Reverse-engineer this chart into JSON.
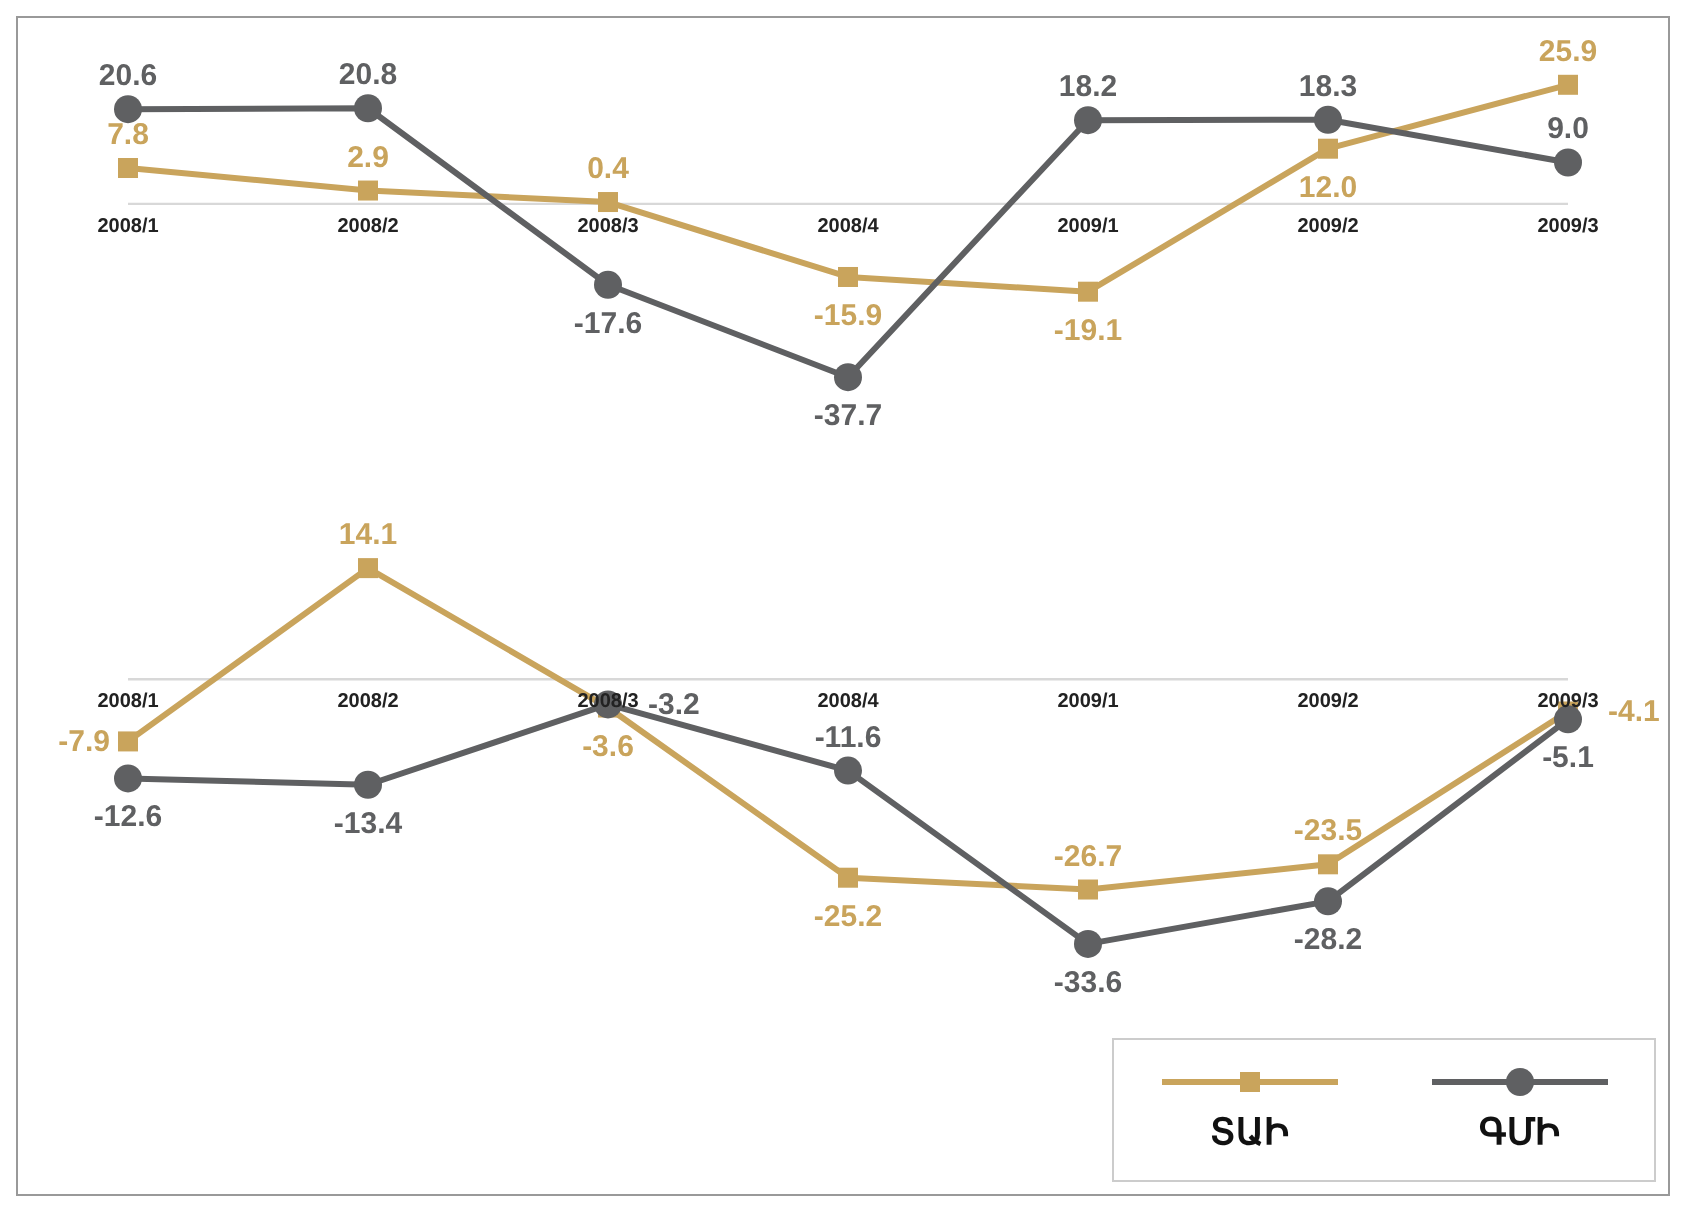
{
  "chart_data": [
    {
      "type": "line",
      "categories": [
        "2008/1",
        "2008/2",
        "2008/3",
        "2008/4",
        "2009/1",
        "2009/2",
        "2009/3"
      ],
      "series": [
        {
          "color": "#c9a45c",
          "marker": "square",
          "values": [
            7.8,
            2.9,
            0.4,
            -15.9,
            -19.1,
            12.0,
            25.9
          ],
          "value_labels": [
            "7.8",
            "2.9",
            "0.4",
            "-15.9",
            "-19.1",
            "12.0",
            "25.9"
          ]
        },
        {
          "color": "#5f6062",
          "marker": "circle",
          "values": [
            20.6,
            20.8,
            -17.6,
            -37.7,
            18.2,
            18.3,
            9.0
          ],
          "value_labels": [
            "20.6",
            "20.8",
            "-17.6",
            "-37.7",
            "18.2",
            "18.3",
            "9.0"
          ]
        }
      ],
      "data_labels": true,
      "line_style": "solid"
    },
    {
      "type": "line",
      "categories": [
        "2008/1",
        "2008/2",
        "2008/3",
        "2008/4",
        "2009/1",
        "2009/2",
        "2009/3"
      ],
      "series": [
        {
          "name": "ՏԱԻ",
          "color": "#c9a45c",
          "marker": "square",
          "values": [
            -7.9,
            14.1,
            -3.6,
            -25.2,
            -26.7,
            -23.5,
            -4.1
          ]
        },
        {
          "name": "ԳՄԻ",
          "color": "#5f6062",
          "marker": "circle",
          "values": [
            -12.6,
            -13.4,
            -3.2,
            -11.6,
            -33.6,
            -28.2,
            -5.1
          ]
        }
      ],
      "data_labels": true,
      "legend": "bottom right",
      "line_style": "solid"
    }
  ]
}
